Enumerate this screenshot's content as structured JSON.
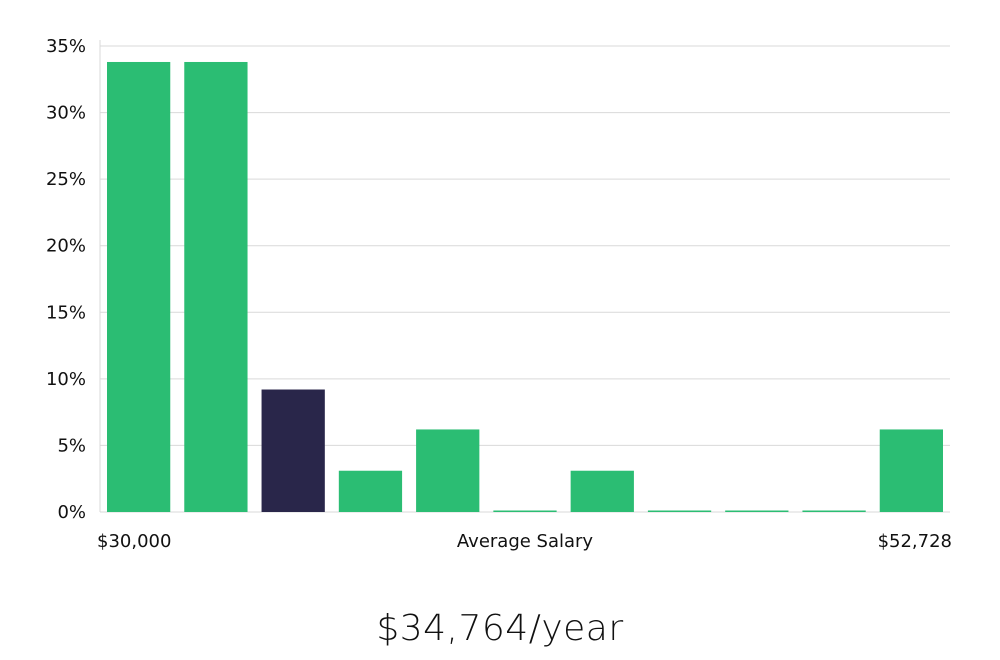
{
  "chart_data": {
    "type": "bar",
    "title": "",
    "xlabel": "Average Salary",
    "ylabel": "",
    "x_range_labels": {
      "min": "$30,000",
      "max": "$52,728"
    },
    "ylim": [
      0,
      35
    ],
    "yticks": [
      0,
      5,
      10,
      15,
      20,
      25,
      30,
      35
    ],
    "ytick_labels": [
      "0%",
      "5%",
      "10%",
      "15%",
      "20%",
      "25%",
      "30%",
      "35%"
    ],
    "values": [
      33.8,
      33.8,
      9.2,
      3.1,
      6.2,
      0,
      3.1,
      0,
      0,
      0,
      6.2
    ],
    "highlight_index": 2,
    "colors": {
      "bar": "#2bbd73",
      "highlight": "#29264a"
    },
    "grid": true
  },
  "summary": {
    "salary": "$34,764/year"
  }
}
